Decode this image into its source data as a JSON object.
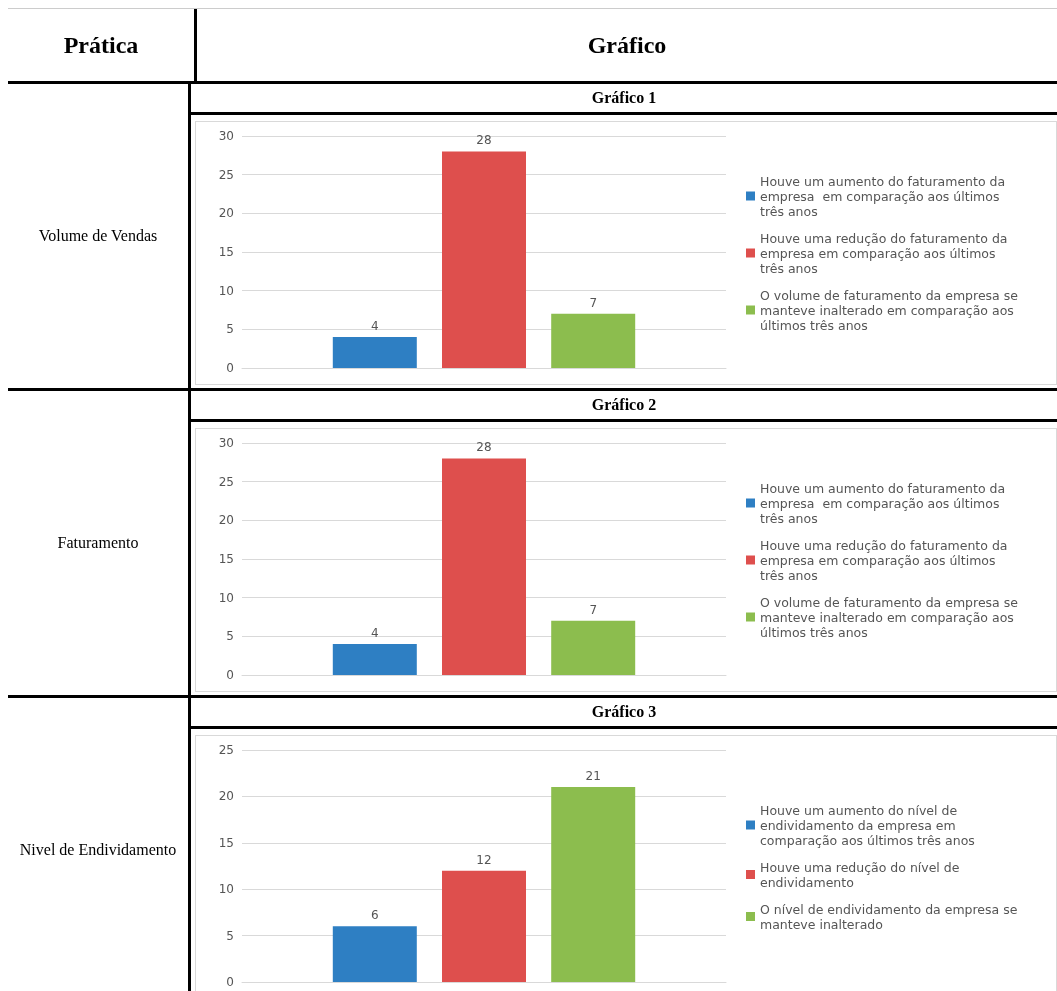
{
  "chart_data": [
    {
      "type": "bar",
      "title": "Gráfico 1",
      "subtitle": "Volume de Vendas",
      "annotations": [
        "Prática",
        "Gráfico"
      ],
      "categories": [
        null
      ],
      "ylim": [
        0,
        30
      ],
      "yticks": [
        0,
        5,
        10,
        15,
        20,
        25,
        30
      ],
      "grid": "y",
      "legend": "right",
      "data_labels": true,
      "series": [
        {
          "name": "Houve um aumento do faturamento da empresa  em comparação aos últimos três anos",
          "color": "#2e7fc3",
          "values": [
            4
          ]
        },
        {
          "name": "Houve uma redução do faturamento da empresa em comparação aos últimos três anos",
          "color": "#de4f4d",
          "values": [
            28
          ]
        },
        {
          "name": "O volume de faturamento da empresa se manteve inalterado em comparação aos últimos três anos",
          "color": "#8cbd4e",
          "values": [
            7
          ]
        }
      ]
    },
    {
      "type": "bar",
      "title": "Gráfico 2",
      "subtitle": "Faturamento",
      "categories": [
        null
      ],
      "ylim": [
        0,
        30
      ],
      "yticks": [
        0,
        5,
        10,
        15,
        20,
        25,
        30
      ],
      "grid": "y",
      "legend": "right",
      "data_labels": true,
      "series": [
        {
          "name": "Houve um aumento do faturamento da empresa  em comparação aos últimos três anos",
          "color": "#2e7fc3",
          "values": [
            4
          ]
        },
        {
          "name": "Houve uma redução do faturamento da empresa em comparação aos últimos três anos",
          "color": "#de4f4d",
          "values": [
            28
          ]
        },
        {
          "name": "O volume de faturamento da empresa se manteve inalterado em comparação aos últimos três anos",
          "color": "#8cbd4e",
          "values": [
            7
          ]
        }
      ]
    },
    {
      "type": "bar",
      "title": "Gráfico 3",
      "subtitle": "Nivel de Endividamento",
      "categories": [
        null
      ],
      "ylim": [
        0,
        25
      ],
      "yticks": [
        0,
        5,
        10,
        15,
        20,
        25
      ],
      "grid": "y",
      "legend": "right",
      "data_labels": true,
      "series": [
        {
          "name": "Houve um aumento do nível de endividamento da empresa em comparação aos últimos três anos",
          "color": "#2e7fc3",
          "values": [
            6
          ]
        },
        {
          "name": "Houve uma redução do nível de endividamento",
          "color": "#de4f4d",
          "values": [
            12
          ]
        },
        {
          "name": "O nível de endividamento da empresa se manteve inalterado",
          "color": "#8cbd4e",
          "values": [
            21
          ]
        }
      ]
    }
  ]
}
